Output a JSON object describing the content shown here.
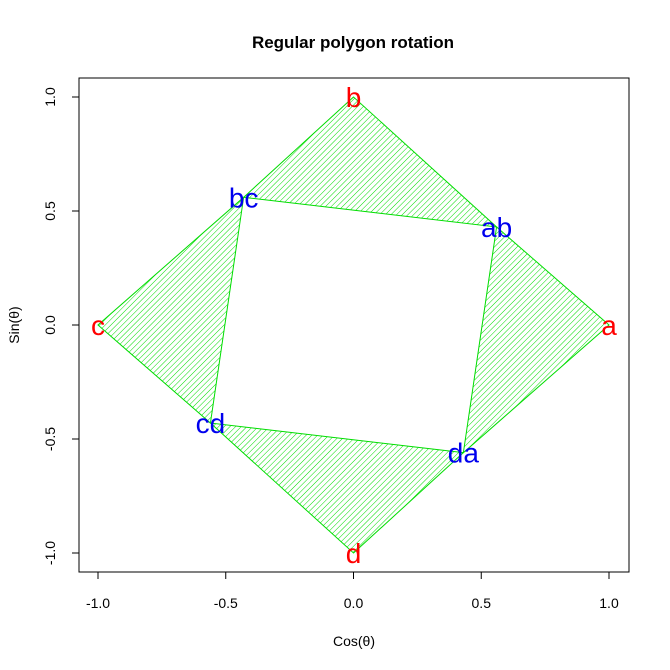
{
  "chart_data": {
    "type": "polygon",
    "title": "Regular polygon rotation",
    "xlabel": "Cos(θ)",
    "ylabel": "Sin(θ)",
    "xlim": [
      -1.0,
      1.0
    ],
    "ylim": [
      -1.0,
      1.0
    ],
    "x_ticks": [
      -1.0,
      -0.5,
      0.0,
      0.5,
      1.0
    ],
    "x_tick_labels": [
      "-1.0",
      "-0.5",
      "0.0",
      "0.5",
      "1.0"
    ],
    "y_ticks": [
      -1.0,
      -0.5,
      0.0,
      0.5,
      1.0
    ],
    "y_tick_labels": [
      "-1.0",
      "-0.5",
      "0.0",
      "0.5",
      "1.0"
    ],
    "grid": false,
    "outer_vertices": [
      {
        "label": "a",
        "x": 1.0,
        "y": 0.0
      },
      {
        "label": "b",
        "x": 0.0,
        "y": 1.0
      },
      {
        "label": "c",
        "x": -1.0,
        "y": 0.0
      },
      {
        "label": "d",
        "x": 0.0,
        "y": -1.0
      }
    ],
    "inner_vertices": [
      {
        "label": "ab",
        "x": 0.56,
        "y": 0.43
      },
      {
        "label": "bc",
        "x": -0.43,
        "y": 0.56
      },
      {
        "label": "cd",
        "x": -0.56,
        "y": -0.43
      },
      {
        "label": "da",
        "x": 0.43,
        "y": -0.56
      }
    ],
    "triangles": [
      {
        "name": "a-ab-da",
        "points": [
          "a",
          "ab",
          "da"
        ]
      },
      {
        "name": "b-bc-ab",
        "points": [
          "b",
          "bc",
          "ab"
        ]
      },
      {
        "name": "c-cd-bc",
        "points": [
          "c",
          "cd",
          "bc"
        ]
      },
      {
        "name": "d-da-cd",
        "points": [
          "d",
          "da",
          "cd"
        ]
      }
    ],
    "colors": {
      "fill_hatch": "#00dd00",
      "edge": "#00dd00",
      "outer_label": "#ff0000",
      "inner_label": "#0000ee",
      "axis": "#000000"
    }
  }
}
